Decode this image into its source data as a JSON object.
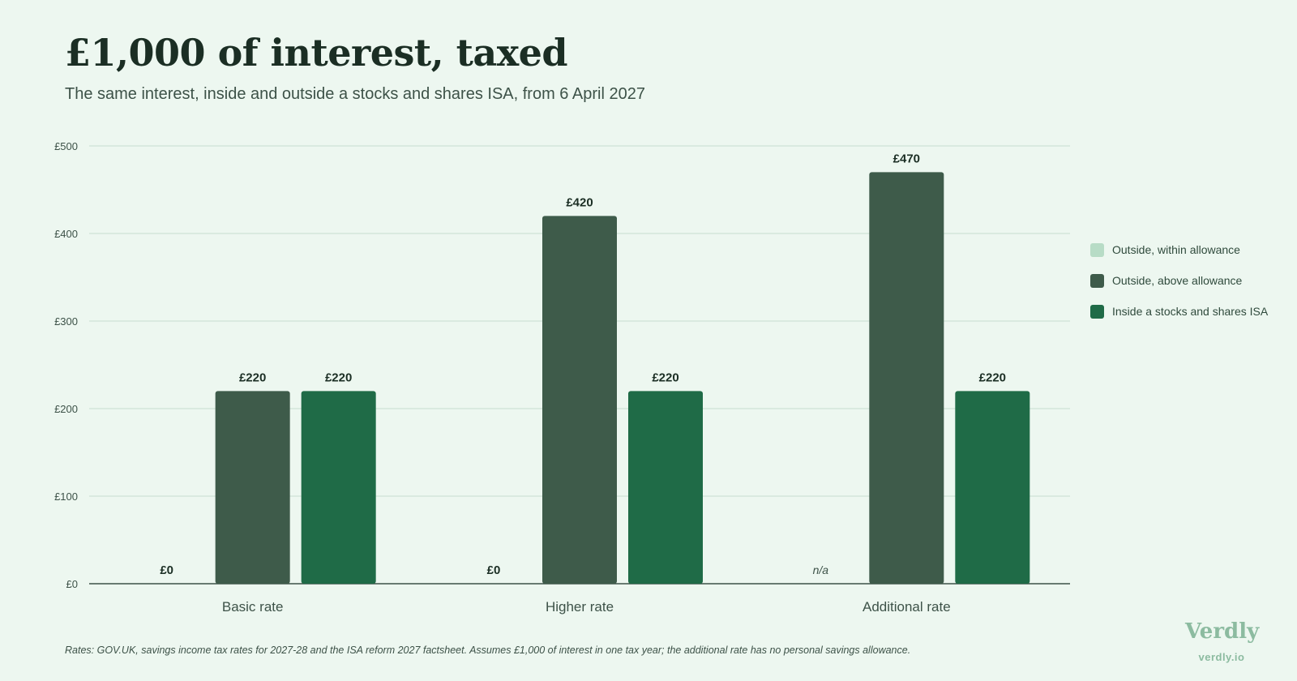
{
  "title": "£1,000 of interest, taxed",
  "subtitle": "The same interest, inside and outside a stocks and shares ISA, from 6 April 2027",
  "footnote": "Rates: GOV.UK, savings income tax rates for 2027-28 and the ISA reform 2027 factsheet. Assumes £1,000 of interest in one tax year; the additional rate has no personal savings allowance.",
  "brand": {
    "name": "Verdly",
    "url": "verdly.io"
  },
  "chart_data": {
    "type": "bar",
    "categories": [
      "Basic rate",
      "Higher rate",
      "Additional rate"
    ],
    "series": [
      {
        "name": "Outside, within allowance",
        "color": "#b7dcc6",
        "values": [
          0,
          0,
          null
        ],
        "labels": [
          "£0",
          "£0",
          "n/a"
        ]
      },
      {
        "name": "Outside, above allowance",
        "color": "#3e5b4a",
        "values": [
          220,
          420,
          470
        ],
        "labels": [
          "£220",
          "£420",
          "£470"
        ]
      },
      {
        "name": "Inside a stocks and shares ISA",
        "color": "#1f6b47",
        "values": [
          220,
          220,
          220
        ],
        "labels": [
          "£220",
          "£220",
          "£220"
        ]
      }
    ],
    "ylim": [
      0,
      500
    ],
    "yticks": [
      0,
      100,
      200,
      300,
      400,
      500
    ],
    "ytick_labels": [
      "£0",
      "£100",
      "£200",
      "£300",
      "£400",
      "£500"
    ],
    "grid": true,
    "legend": "right"
  }
}
